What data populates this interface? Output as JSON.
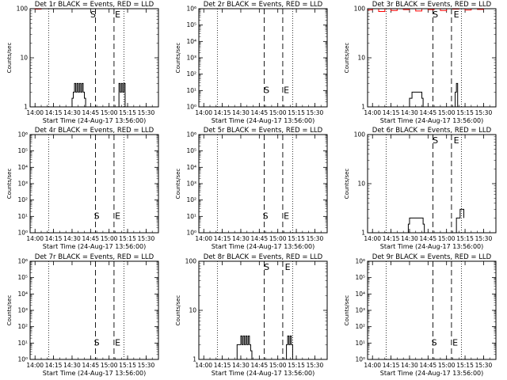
{
  "shared": {
    "xlabel": "Start Time (24-Aug-17 13:56:00)",
    "ylabel": "Counts/sec",
    "xticks": [
      "14:00",
      "14:15",
      "14:30",
      "14:45",
      "15:00",
      "15:15",
      "15:30"
    ],
    "marker_s": "S",
    "marker_e": "E",
    "colors": {
      "events": "#000000",
      "lld": "#ff0000"
    }
  },
  "chart_data": [
    {
      "type": "line",
      "title": "Det 1r BLACK = Events, RED = LLD",
      "yscale": "log",
      "ylim": [
        1,
        100
      ],
      "yticks": [
        "1",
        "10",
        "100"
      ],
      "xlim": [
        "13:56",
        "15:40"
      ],
      "dotted_x": [
        "14:11",
        "15:12"
      ],
      "dashed_x": [
        "14:49",
        "15:04"
      ],
      "labels": [
        {
          "text": "S",
          "x": "14:47",
          "y": 100
        },
        {
          "text": "E",
          "x": "15:07",
          "y": 100
        }
      ],
      "series": [
        {
          "name": "Events",
          "color": "#000000",
          "points": [
            [
              "14:29",
              1
            ],
            [
              "14:30",
              1.5
            ],
            [
              "14:31",
              2
            ],
            [
              "14:32",
              3
            ],
            [
              "14:33",
              2
            ],
            [
              "14:34",
              3
            ],
            [
              "14:35",
              2
            ],
            [
              "14:36",
              3
            ],
            [
              "14:37",
              2
            ],
            [
              "14:38",
              3
            ],
            [
              "14:39",
              2
            ],
            [
              "14:40",
              1.5
            ],
            [
              "14:41",
              1
            ],
            [
              "15:07",
              1
            ],
            [
              "15:08",
              3
            ],
            [
              "15:09",
              2
            ],
            [
              "15:10",
              3
            ],
            [
              "15:11",
              2
            ],
            [
              "15:12",
              3
            ],
            [
              "15:13",
              1
            ]
          ]
        },
        {
          "name": "LLD",
          "color": "#ff0000",
          "points": [
            [
              "13:56",
              100
            ],
            [
              "14:00",
              98
            ],
            [
              "14:05",
              100
            ],
            [
              "14:08",
              100
            ]
          ]
        }
      ]
    },
    {
      "type": "line",
      "title": "Det 2r BLACK = Events, RED = LLD",
      "yscale": "log",
      "ylim": [
        1,
        1000000
      ],
      "yticks": [
        "10⁰",
        "10¹",
        "10²",
        "10³",
        "10⁴",
        "10⁵",
        "10⁶"
      ],
      "xlim": [
        "13:56",
        "15:40"
      ],
      "dotted_x": [
        "14:11",
        "15:12"
      ],
      "dashed_x": [
        "14:49",
        "15:04"
      ],
      "labels": [
        {
          "text": "S",
          "x": "14:51",
          "y": 10
        },
        {
          "text": "E",
          "x": "15:07",
          "y": 10
        }
      ],
      "series": []
    },
    {
      "type": "line",
      "title": "Det 3r BLACK = Events, RED = LLD",
      "yscale": "log",
      "ylim": [
        1,
        100
      ],
      "yticks": [
        "1",
        "10",
        "100"
      ],
      "xlim": [
        "13:56",
        "15:40"
      ],
      "dotted_x": [
        "14:11",
        "15:12"
      ],
      "dashed_x": [
        "14:49",
        "15:04"
      ],
      "labels": [
        {
          "text": "S",
          "x": "14:51",
          "y": 100
        },
        {
          "text": "E",
          "x": "15:08",
          "y": 100
        }
      ],
      "series": [
        {
          "name": "Events",
          "color": "#000000",
          "points": [
            [
              "14:28",
              1
            ],
            [
              "14:30",
              1.5
            ],
            [
              "14:32",
              2
            ],
            [
              "14:35",
              2
            ],
            [
              "14:38",
              2
            ],
            [
              "14:40",
              1.5
            ],
            [
              "14:41",
              1
            ],
            [
              "15:06",
              1
            ],
            [
              "15:07",
              2
            ],
            [
              "15:08",
              3
            ],
            [
              "15:09",
              1
            ]
          ]
        },
        {
          "name": "LLD",
          "color": "#ff0000",
          "points": [
            [
              "13:56",
              95
            ],
            [
              "14:00",
              100
            ],
            [
              "14:05",
              88
            ],
            [
              "14:10",
              100
            ],
            [
              "14:15",
              92
            ],
            [
              "14:20",
              100
            ],
            [
              "14:25",
              96
            ],
            [
              "14:30",
              100
            ],
            [
              "14:35",
              90
            ],
            [
              "14:40",
              100
            ],
            [
              "14:45",
              96
            ],
            [
              "14:50",
              100
            ],
            [
              "14:55",
              92
            ],
            [
              "15:00",
              100
            ],
            [
              "15:05",
              98
            ],
            [
              "15:10",
              100
            ],
            [
              "15:15",
              94
            ],
            [
              "15:20",
              100
            ],
            [
              "15:25",
              97
            ],
            [
              "15:30",
              100
            ],
            [
              "15:35",
              100
            ]
          ]
        }
      ]
    },
    {
      "type": "line",
      "title": "Det 4r BLACK = Events, RED = LLD",
      "yscale": "log",
      "ylim": [
        1,
        1000000
      ],
      "yticks": [
        "10⁰",
        "10¹",
        "10²",
        "10³",
        "10⁴",
        "10⁵",
        "10⁶"
      ],
      "xlim": [
        "13:56",
        "15:40"
      ],
      "dotted_x": [
        "14:11",
        "15:12"
      ],
      "dashed_x": [
        "14:49",
        "15:04"
      ],
      "labels": [
        {
          "text": "S",
          "x": "14:50",
          "y": 10
        },
        {
          "text": "E",
          "x": "15:07",
          "y": 10
        }
      ],
      "series": []
    },
    {
      "type": "line",
      "title": "Det 5r BLACK = Events, RED = LLD",
      "yscale": "log",
      "ylim": [
        1,
        1000000
      ],
      "yticks": [
        "10⁰",
        "10¹",
        "10²",
        "10³",
        "10⁴",
        "10⁵",
        "10⁶"
      ],
      "xlim": [
        "13:56",
        "15:40"
      ],
      "dotted_x": [
        "14:11",
        "15:12"
      ],
      "dashed_x": [
        "14:49",
        "15:04"
      ],
      "labels": [
        {
          "text": "S",
          "x": "14:50",
          "y": 10
        },
        {
          "text": "E",
          "x": "15:07",
          "y": 10
        }
      ],
      "series": []
    },
    {
      "type": "line",
      "title": "Det 6r BLACK = Events, RED = LLD",
      "yscale": "log",
      "ylim": [
        1,
        100
      ],
      "yticks": [
        "1",
        "10",
        "100"
      ],
      "xlim": [
        "13:56",
        "15:40"
      ],
      "dotted_x": [
        "14:11",
        "15:12"
      ],
      "dashed_x": [
        "14:49",
        "15:04"
      ],
      "labels": [
        {
          "text": "S",
          "x": "14:51",
          "y": 100
        },
        {
          "text": "E",
          "x": "15:08",
          "y": 100
        }
      ],
      "series": [
        {
          "name": "Events",
          "color": "#000000",
          "points": [
            [
              "14:28",
              1
            ],
            [
              "14:29",
              1.5
            ],
            [
              "14:30",
              2
            ],
            [
              "14:40",
              2
            ],
            [
              "14:41",
              1.5
            ],
            [
              "14:42",
              1
            ],
            [
              "15:07",
              1
            ],
            [
              "15:08",
              2
            ],
            [
              "15:10",
              2
            ],
            [
              "15:11",
              3
            ],
            [
              "15:13",
              3
            ],
            [
              "15:14",
              2
            ]
          ]
        },
        {
          "name": "LLD",
          "color": "#ff0000",
          "points": [
            [
              "13:56",
              100
            ],
            [
              "14:00",
              100
            ],
            [
              "14:05",
              100
            ]
          ]
        }
      ]
    },
    {
      "type": "line",
      "title": "Det 7r BLACK = Events, RED = LLD",
      "yscale": "log",
      "ylim": [
        1,
        1000000
      ],
      "yticks": [
        "10⁰",
        "10¹",
        "10²",
        "10³",
        "10⁴",
        "10⁵",
        "10⁶"
      ],
      "xlim": [
        "13:56",
        "15:40"
      ],
      "dotted_x": [
        "14:11",
        "15:12"
      ],
      "dashed_x": [
        "14:49",
        "15:04"
      ],
      "labels": [
        {
          "text": "S",
          "x": "14:50",
          "y": 10
        },
        {
          "text": "E",
          "x": "15:07",
          "y": 10
        }
      ],
      "series": []
    },
    {
      "type": "line",
      "title": "Det 8r BLACK = Events, RED = LLD",
      "yscale": "log",
      "ylim": [
        1,
        100
      ],
      "yticks": [
        "1",
        "10",
        "100"
      ],
      "xlim": [
        "13:56",
        "15:40"
      ],
      "dotted_x": [
        "14:11",
        "15:12"
      ],
      "dashed_x": [
        "14:49",
        "15:04"
      ],
      "labels": [
        {
          "text": "S",
          "x": "14:51",
          "y": 100
        },
        {
          "text": "E",
          "x": "15:08",
          "y": 100
        }
      ],
      "series": [
        {
          "name": "Events",
          "color": "#000000",
          "points": [
            [
              "14:26",
              1
            ],
            [
              "14:27",
              2
            ],
            [
              "14:29",
              2
            ],
            [
              "14:30",
              3
            ],
            [
              "14:31",
              2
            ],
            [
              "14:32",
              3
            ],
            [
              "14:33",
              2
            ],
            [
              "14:34",
              3
            ],
            [
              "14:35",
              2
            ],
            [
              "14:36",
              3
            ],
            [
              "14:37",
              2
            ],
            [
              "14:38",
              1.5
            ],
            [
              "14:39",
              1
            ],
            [
              "15:06",
              1
            ],
            [
              "15:07",
              2
            ],
            [
              "15:08",
              3
            ],
            [
              "15:09",
              2
            ],
            [
              "15:10",
              3
            ],
            [
              "15:11",
              2
            ],
            [
              "15:12",
              1
            ]
          ]
        },
        {
          "name": "LLD",
          "color": "#ff0000",
          "points": [
            [
              "13:56",
              100
            ],
            [
              "14:00",
              100
            ],
            [
              "14:05",
              100
            ],
            [
              "14:08",
              100
            ]
          ]
        }
      ]
    },
    {
      "type": "line",
      "title": "Det 9r BLACK = Events, RED = LLD",
      "yscale": "log",
      "ylim": [
        1,
        1000000
      ],
      "yticks": [
        "10⁰",
        "10¹",
        "10²",
        "10³",
        "10⁴",
        "10⁵",
        "10⁶"
      ],
      "xlim": [
        "13:56",
        "15:40"
      ],
      "dotted_x": [
        "14:11",
        "15:12"
      ],
      "dashed_x": [
        "14:49",
        "15:04"
      ],
      "labels": [
        {
          "text": "S",
          "x": "14:50",
          "y": 10
        },
        {
          "text": "E",
          "x": "15:07",
          "y": 10
        }
      ],
      "series": []
    }
  ]
}
